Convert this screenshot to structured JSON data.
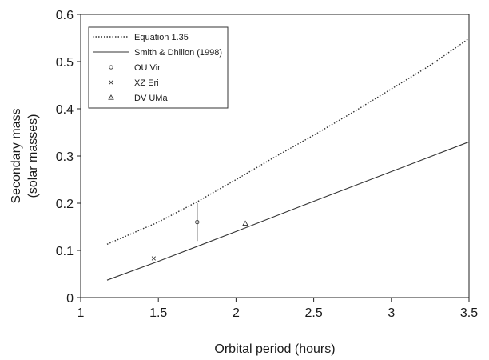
{
  "chart_data": {
    "type": "line",
    "xlabel": "Orbital period (hours)",
    "ylabel_lines": [
      "Secondary mass",
      "(solar masses)"
    ],
    "xlim": [
      1,
      3.5
    ],
    "ylim": [
      0,
      0.6
    ],
    "x_ticks": [
      "1",
      "1.5",
      "2",
      "2.5",
      "3",
      "3.5"
    ],
    "y_ticks": [
      "0",
      "0.1",
      "0.2",
      "0.3",
      "0.4",
      "0.5",
      "0.6"
    ],
    "grid": false,
    "legend_position": "top-left",
    "series": [
      {
        "name": "Equation 1.35",
        "style": "dotted",
        "color": "#333333",
        "points": [
          [
            1.17,
            0.113
          ],
          [
            1.5,
            0.16
          ],
          [
            1.75,
            0.203
          ],
          [
            2.0,
            0.25
          ],
          [
            2.25,
            0.298
          ],
          [
            2.5,
            0.344
          ],
          [
            2.75,
            0.392
          ],
          [
            3.0,
            0.442
          ],
          [
            3.25,
            0.492
          ],
          [
            3.5,
            0.549
          ]
        ]
      },
      {
        "name": "Smith & Dhillon (1998)",
        "style": "solid",
        "color": "#333333",
        "points": [
          [
            1.17,
            0.037
          ],
          [
            1.5,
            0.077
          ],
          [
            2.0,
            0.14
          ],
          [
            2.5,
            0.204
          ],
          [
            3.0,
            0.267
          ],
          [
            3.5,
            0.33
          ]
        ]
      }
    ],
    "markers": [
      {
        "name": "OU Vir",
        "symbol": "circle",
        "x": 1.75,
        "y": 0.16,
        "yerr": [
          0.12,
          0.2
        ]
      },
      {
        "name": "XZ Eri",
        "symbol": "cross",
        "x": 1.47,
        "y": 0.083
      },
      {
        "name": "DV UMa",
        "symbol": "triangle",
        "x": 2.06,
        "y": 0.157
      }
    ]
  }
}
